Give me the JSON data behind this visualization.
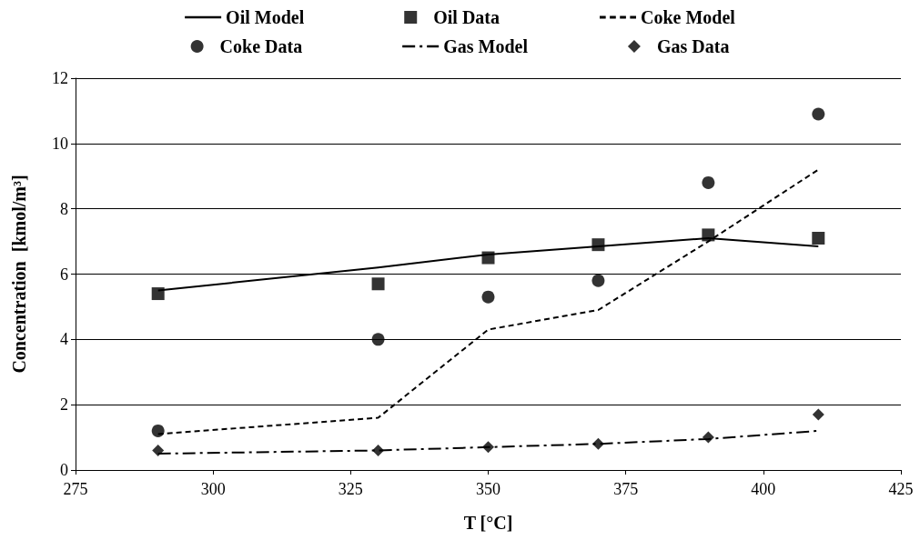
{
  "chart_data": {
    "type": "line",
    "xlabel": "T [°C]",
    "ylabel": "Concentration  [kmol/m³]",
    "x": [
      290,
      330,
      350,
      370,
      390,
      410
    ],
    "series": [
      {
        "name": "Oil Model",
        "type": "line",
        "color": "#000000",
        "line_style": "solid",
        "marker": "none",
        "values": [
          5.5,
          6.2,
          6.6,
          6.85,
          7.1,
          6.85
        ]
      },
      {
        "name": "Oil Data",
        "type": "scatter",
        "color": "#000000",
        "marker": "square",
        "values": [
          5.4,
          5.7,
          6.5,
          6.9,
          7.2,
          7.1
        ]
      },
      {
        "name": "Coke Model",
        "type": "line",
        "color": "#000000",
        "line_style": "dashed",
        "marker": "none",
        "values": [
          1.1,
          1.6,
          4.3,
          4.9,
          7.0,
          9.2
        ]
      },
      {
        "name": "Coke Data",
        "type": "scatter",
        "color": "#000000",
        "marker": "circle",
        "values": [
          1.2,
          4.0,
          5.3,
          5.8,
          8.8,
          10.9
        ]
      },
      {
        "name": "Gas Model",
        "type": "line",
        "color": "#000000",
        "line_style": "dashdot",
        "marker": "none",
        "values": [
          0.5,
          0.6,
          0.7,
          0.8,
          0.95,
          1.2
        ]
      },
      {
        "name": "Gas Data",
        "type": "scatter",
        "color": "#000000",
        "marker": "diamond",
        "values": [
          0.6,
          0.6,
          0.7,
          0.8,
          1.0,
          1.7
        ]
      }
    ],
    "xlim": [
      275,
      425
    ],
    "xticks": [
      275,
      300,
      325,
      350,
      375,
      400,
      425
    ],
    "ylim": [
      0,
      12
    ],
    "yticks": [
      0,
      2,
      4,
      6,
      8,
      10,
      12
    ],
    "grid": "y",
    "legend": "top"
  }
}
